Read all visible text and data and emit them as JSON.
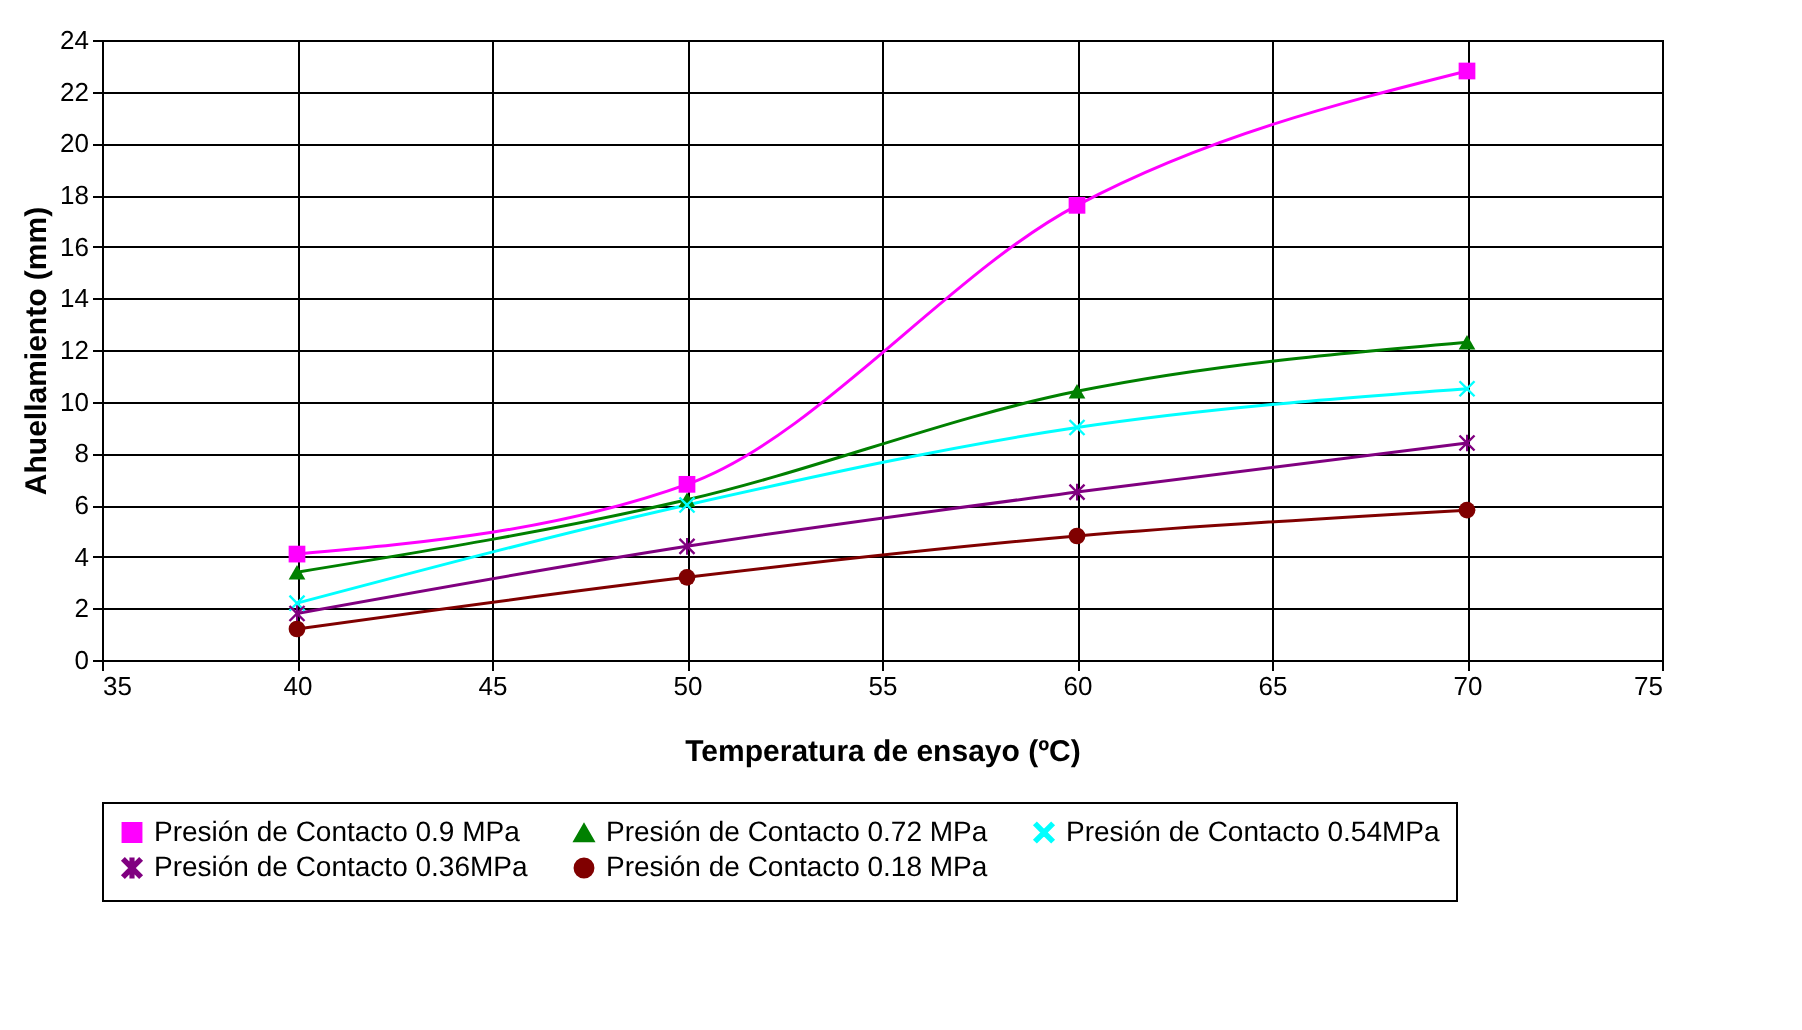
{
  "chart_data": {
    "type": "line",
    "xlabel": "Temperatura de ensayo (ºC)",
    "ylabel": "Ahuellamiento (mm)",
    "x": [
      40,
      50,
      60,
      70
    ],
    "series": [
      {
        "name": "Presión de Contacto 0.9 MPa",
        "color": "#ff00ff",
        "marker": "square",
        "values": [
          4.1,
          6.8,
          17.6,
          22.8
        ]
      },
      {
        "name": "Presión de Contacto 0.72 MPa",
        "color": "#008000",
        "marker": "triangle",
        "values": [
          3.4,
          6.2,
          10.4,
          12.3
        ]
      },
      {
        "name": "Presión de Contacto 0.54MPa",
        "color": "#00ffff",
        "marker": "cross",
        "values": [
          2.2,
          6.0,
          9.0,
          10.5
        ]
      },
      {
        "name": "Presión de Contacto 0.36MPa",
        "color": "#800080",
        "marker": "star",
        "values": [
          1.8,
          4.4,
          6.5,
          8.4
        ]
      },
      {
        "name": "Presión de Contacto 0.18 MPa",
        "color": "#800000",
        "marker": "circle",
        "values": [
          1.2,
          3.2,
          4.8,
          5.8
        ]
      }
    ],
    "xlim": [
      35,
      75
    ],
    "xticks": [
      35,
      40,
      45,
      50,
      55,
      60,
      65,
      70,
      75
    ],
    "ylim": [
      0,
      24
    ],
    "yticks": [
      0,
      2,
      4,
      6,
      8,
      10,
      12,
      14,
      16,
      18,
      20,
      22,
      24
    ],
    "grid": true,
    "legend": "bottom",
    "line_style": "solid"
  }
}
